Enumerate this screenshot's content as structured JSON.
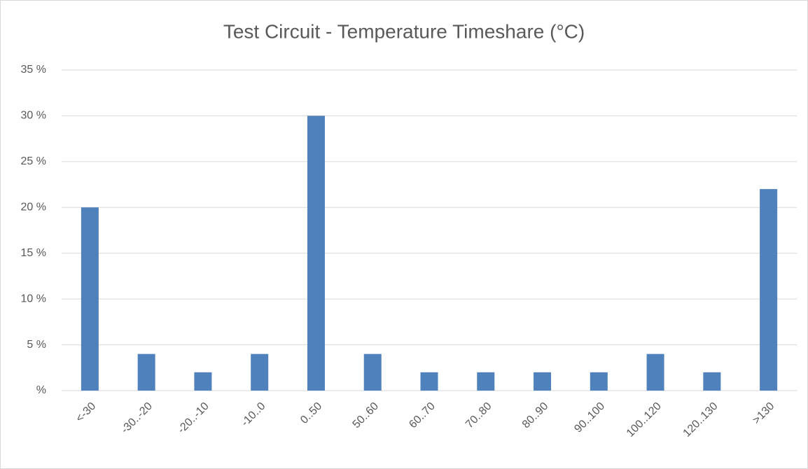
{
  "chart_data": {
    "type": "bar",
    "title": "Test Circuit - Temperature Timeshare (°C)",
    "categories": [
      "<-30",
      "-30..-20",
      "-20..-10",
      "-10..0",
      "0..50",
      "50..60",
      "60..70",
      "70..80",
      "80..90",
      "90..100",
      "100..120",
      "120..130",
      ">130"
    ],
    "values": [
      20,
      4,
      2,
      4,
      30,
      4,
      2,
      2,
      2,
      2,
      4,
      2,
      22
    ],
    "color": "#4f81bd",
    "ylim": [
      0,
      35
    ],
    "yticks": [
      {
        "value": 0,
        "label": "%"
      },
      {
        "value": 5,
        "label": "5 %"
      },
      {
        "value": 10,
        "label": "10 %"
      },
      {
        "value": 15,
        "label": "15 %"
      },
      {
        "value": 20,
        "label": "20 %"
      },
      {
        "value": 25,
        "label": "25 %"
      },
      {
        "value": 30,
        "label": "30 %"
      },
      {
        "value": 35,
        "label": "35 %"
      }
    ],
    "grid": true
  }
}
